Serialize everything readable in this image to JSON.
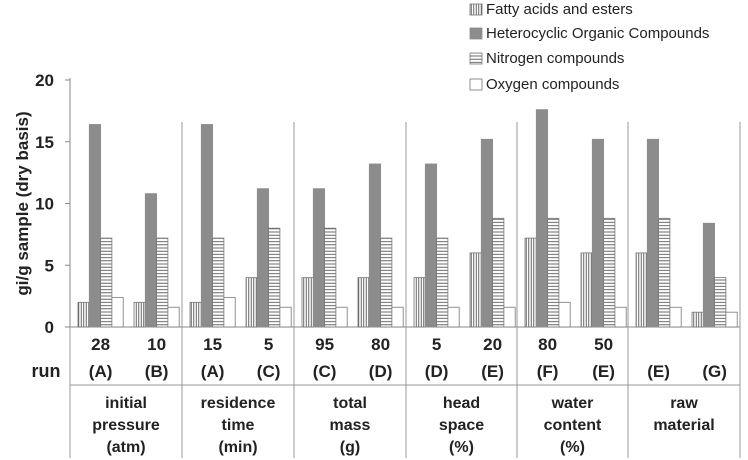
{
  "chart_data": {
    "type": "bar",
    "ylabel": "gi/g sample (dry basis)",
    "ylim": [
      0,
      20
    ],
    "yticks": [
      "0",
      "5",
      "10",
      "15",
      "20"
    ],
    "row_label": "run",
    "legend_position": "top-right",
    "series": [
      {
        "name": "Fatty acids and esters",
        "pattern": "vertical-stripes",
        "color": "#ffffff",
        "values": [
          2,
          2,
          2,
          4,
          4,
          4,
          4,
          6,
          7.2,
          6,
          6,
          1.2
        ]
      },
      {
        "name": "Heterocyclic Organic Compounds",
        "pattern": "solid",
        "color": "#8c8c8c",
        "values": [
          16.4,
          10.8,
          16.4,
          11.2,
          11.2,
          13.2,
          13.2,
          15.2,
          17.6,
          15.2,
          15.2,
          8.4
        ]
      },
      {
        "name": "Nitrogen compounds",
        "pattern": "horizontal-stripes",
        "color": "#ffffff",
        "values": [
          7.2,
          7.2,
          7.2,
          8,
          8,
          7.2,
          7.2,
          8.8,
          8.8,
          8.8,
          8.8,
          4
        ]
      },
      {
        "name": "Oxygen compounds",
        "pattern": "hollow",
        "color": "#ffffff",
        "values": [
          2.4,
          1.6,
          2.4,
          1.6,
          1.6,
          1.6,
          1.6,
          1.6,
          2,
          1.6,
          1.6,
          1.2
        ]
      }
    ],
    "groups": [
      {
        "category": [
          "initial",
          "pressure",
          "(atm)"
        ],
        "runs": [
          {
            "value": "28",
            "id": "(A)"
          },
          {
            "value": "10",
            "id": "(B)"
          }
        ]
      },
      {
        "category": [
          "residence",
          "time",
          "(min)"
        ],
        "runs": [
          {
            "value": "15",
            "id": "(A)"
          },
          {
            "value": "5",
            "id": "(C)"
          }
        ]
      },
      {
        "category": [
          "total",
          "mass",
          "(g)"
        ],
        "runs": [
          {
            "value": "95",
            "id": "(C)"
          },
          {
            "value": "80",
            "id": "(D)"
          }
        ]
      },
      {
        "category": [
          "head",
          "space",
          "(%)"
        ],
        "runs": [
          {
            "value": "5",
            "id": "(D)"
          },
          {
            "value": "20",
            "id": "(E)"
          }
        ]
      },
      {
        "category": [
          "water",
          "content",
          "(%)"
        ],
        "runs": [
          {
            "value": "80",
            "id": "(F)"
          },
          {
            "value": "50",
            "id": "(E)"
          }
        ]
      },
      {
        "category": [
          "raw",
          "material"
        ],
        "runs": [
          {
            "value": "",
            "id": "(E)"
          },
          {
            "value": "",
            "id": "(G)"
          }
        ]
      }
    ]
  }
}
